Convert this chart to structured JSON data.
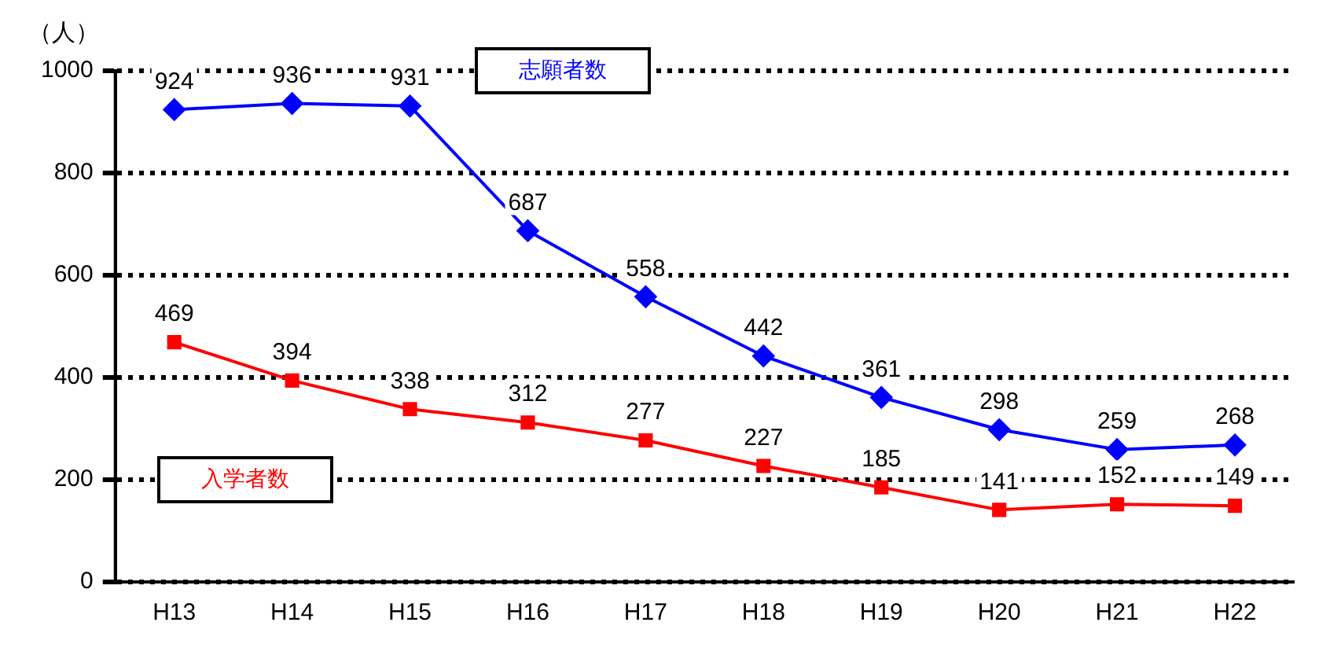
{
  "chart_data": {
    "type": "line",
    "ylabel": "（人）",
    "categories": [
      "H13",
      "H14",
      "H15",
      "H16",
      "H17",
      "H18",
      "H19",
      "H20",
      "H21",
      "H22"
    ],
    "series": [
      {
        "name": "志願者数",
        "color": "#0000ff",
        "values": [
          924,
          936,
          931,
          687,
          558,
          442,
          361,
          298,
          259,
          268
        ],
        "marker": "diamond"
      },
      {
        "name": "入学者数",
        "color": "#ff0000",
        "values": [
          469,
          394,
          338,
          312,
          277,
          227,
          185,
          141,
          152,
          149
        ],
        "marker": "square"
      }
    ],
    "ylim": [
      0,
      1000
    ],
    "yticks": [
      0,
      200,
      400,
      600,
      800,
      1000
    ],
    "grid": "y",
    "legend": false,
    "data_labels": true,
    "line_style": "solid"
  }
}
